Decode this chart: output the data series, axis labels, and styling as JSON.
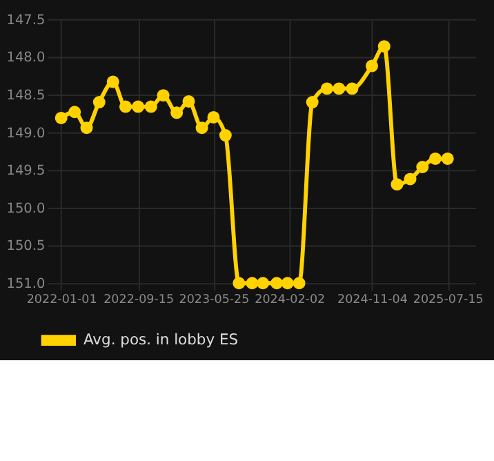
{
  "chart_data": {
    "type": "line",
    "legend": "bottom",
    "grid": true,
    "marker": "circle",
    "line_style": "solid",
    "x": [
      "2022-01-01",
      "2022-02-15",
      "2022-03-27",
      "2022-05-08",
      "2022-06-23",
      "2022-08-04",
      "2022-09-15",
      "2022-10-28",
      "2022-12-08",
      "2023-01-22",
      "2023-03-03",
      "2023-04-16",
      "2023-05-25",
      "2023-07-04",
      "2023-08-18",
      "2023-10-01",
      "2023-11-06",
      "2023-12-22",
      "2024-01-27",
      "2024-03-06",
      "2024-04-19",
      "2024-06-07",
      "2024-07-17",
      "2024-08-30",
      "2024-11-04",
      "2024-12-15",
      "2025-01-27",
      "2025-03-12",
      "2025-04-22",
      "2025-06-04",
      "2025-07-15"
    ],
    "series": [
      {
        "name": "Avg. pos. in lobby ES",
        "color": "#ffd200",
        "values": [
          148.81,
          148.73,
          148.94,
          148.6,
          148.33,
          148.66,
          148.66,
          148.66,
          148.51,
          148.74,
          148.59,
          148.94,
          148.8,
          149.04,
          151.0,
          151.0,
          151.0,
          151.0,
          151.0,
          151.0,
          148.6,
          148.42,
          148.42,
          148.42,
          148.12,
          147.86,
          149.69,
          149.62,
          149.46,
          149.35,
          149.35
        ]
      }
    ],
    "xlim": [
      "2021-11-15",
      "2025-10-15"
    ],
    "xticks": [
      "2022-01-01",
      "2022-09-15",
      "2023-05-25",
      "2024-02-02",
      "2024-11-04",
      "2025-07-15"
    ],
    "ylim": [
      151.0,
      147.5
    ],
    "yticks": [
      147.5,
      {
        "value": 148,
        "label": "148.0"
      },
      148.5,
      {
        "value": 149,
        "label": "149.0"
      },
      149.5,
      {
        "value": 150,
        "label": "150.0"
      },
      150.5,
      {
        "value": 151,
        "label": "151.0"
      }
    ]
  }
}
